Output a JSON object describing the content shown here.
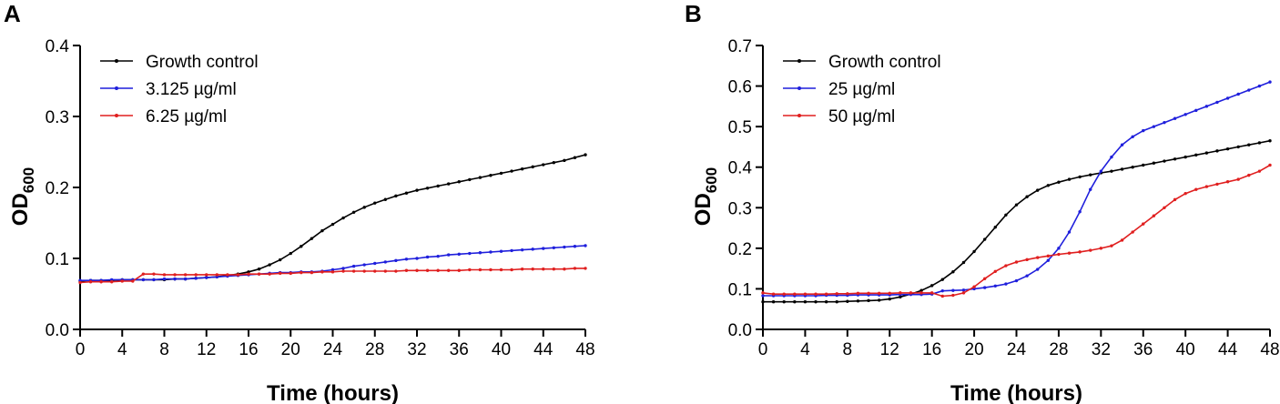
{
  "chart_data": [
    {
      "type": "line",
      "panel_label": "A",
      "xlabel": "Time (hours)",
      "ylabel_main": "OD",
      "ylabel_sub": "600",
      "xlim": [
        0,
        48
      ],
      "ylim": [
        0,
        0.4
      ],
      "x_ticks": [
        "0",
        "4",
        "8",
        "12",
        "16",
        "20",
        "24",
        "28",
        "32",
        "36",
        "40",
        "44",
        "48"
      ],
      "y_ticks": [
        "0.0",
        "0.1",
        "0.2",
        "0.3",
        "0.4"
      ],
      "legend_position": "top-left",
      "series": [
        {
          "name": "Growth control",
          "color": "#000000",
          "x": [
            0,
            1,
            2,
            3,
            4,
            5,
            6,
            7,
            8,
            9,
            10,
            11,
            12,
            13,
            14,
            15,
            16,
            17,
            18,
            19,
            20,
            21,
            22,
            23,
            24,
            25,
            26,
            27,
            28,
            29,
            30,
            31,
            32,
            33,
            34,
            35,
            36,
            37,
            38,
            39,
            40,
            41,
            42,
            43,
            44,
            45,
            46,
            47,
            48
          ],
          "y": [
            0.068,
            0.069,
            0.069,
            0.069,
            0.07,
            0.07,
            0.07,
            0.07,
            0.07,
            0.071,
            0.071,
            0.072,
            0.073,
            0.074,
            0.076,
            0.078,
            0.081,
            0.085,
            0.091,
            0.098,
            0.107,
            0.117,
            0.128,
            0.139,
            0.148,
            0.157,
            0.165,
            0.172,
            0.178,
            0.183,
            0.188,
            0.192,
            0.196,
            0.199,
            0.202,
            0.205,
            0.208,
            0.211,
            0.214,
            0.217,
            0.22,
            0.223,
            0.226,
            0.229,
            0.232,
            0.235,
            0.238,
            0.242,
            0.246
          ]
        },
        {
          "name": "3.125 µg/ml",
          "color": "#1f1fdc",
          "x": [
            0,
            1,
            2,
            3,
            4,
            5,
            6,
            7,
            8,
            9,
            10,
            11,
            12,
            13,
            14,
            15,
            16,
            17,
            18,
            19,
            20,
            21,
            22,
            23,
            24,
            25,
            26,
            27,
            28,
            29,
            30,
            31,
            32,
            33,
            34,
            35,
            36,
            37,
            38,
            39,
            40,
            41,
            42,
            43,
            44,
            45,
            46,
            47,
            48
          ],
          "y": [
            0.069,
            0.069,
            0.069,
            0.07,
            0.07,
            0.07,
            0.07,
            0.07,
            0.071,
            0.071,
            0.071,
            0.072,
            0.073,
            0.074,
            0.075,
            0.076,
            0.077,
            0.078,
            0.079,
            0.08,
            0.08,
            0.081,
            0.081,
            0.082,
            0.084,
            0.086,
            0.089,
            0.091,
            0.093,
            0.095,
            0.097,
            0.099,
            0.1,
            0.102,
            0.103,
            0.105,
            0.106,
            0.107,
            0.108,
            0.109,
            0.11,
            0.111,
            0.112,
            0.113,
            0.114,
            0.115,
            0.116,
            0.117,
            0.118
          ]
        },
        {
          "name": "6.25 µg/ml",
          "color": "#e01f1f",
          "x": [
            0,
            1,
            2,
            3,
            4,
            5,
            6,
            7,
            8,
            9,
            10,
            11,
            12,
            13,
            14,
            15,
            16,
            17,
            18,
            19,
            20,
            21,
            22,
            23,
            24,
            25,
            26,
            27,
            28,
            29,
            30,
            31,
            32,
            33,
            34,
            35,
            36,
            37,
            38,
            39,
            40,
            41,
            42,
            43,
            44,
            45,
            46,
            47,
            48
          ],
          "y": [
            0.066,
            0.067,
            0.067,
            0.067,
            0.068,
            0.068,
            0.078,
            0.078,
            0.077,
            0.077,
            0.077,
            0.077,
            0.077,
            0.077,
            0.077,
            0.077,
            0.078,
            0.078,
            0.078,
            0.079,
            0.079,
            0.08,
            0.08,
            0.081,
            0.081,
            0.082,
            0.082,
            0.082,
            0.082,
            0.082,
            0.082,
            0.083,
            0.083,
            0.083,
            0.083,
            0.083,
            0.083,
            0.084,
            0.084,
            0.084,
            0.084,
            0.084,
            0.085,
            0.085,
            0.085,
            0.085,
            0.085,
            0.086,
            0.086
          ]
        }
      ]
    },
    {
      "type": "line",
      "panel_label": "B",
      "xlabel": "Time (hours)",
      "ylabel_main": "OD",
      "ylabel_sub": "600",
      "xlim": [
        0,
        48
      ],
      "ylim": [
        0,
        0.7
      ],
      "x_ticks": [
        "0",
        "4",
        "8",
        "12",
        "16",
        "20",
        "24",
        "28",
        "32",
        "36",
        "40",
        "44",
        "48"
      ],
      "y_ticks": [
        "0.0",
        "0.1",
        "0.2",
        "0.3",
        "0.4",
        "0.5",
        "0.6",
        "0.7"
      ],
      "legend_position": "top-left",
      "series": [
        {
          "name": "Growth control",
          "color": "#000000",
          "x": [
            0,
            1,
            2,
            3,
            4,
            5,
            6,
            7,
            8,
            9,
            10,
            11,
            12,
            13,
            14,
            15,
            16,
            17,
            18,
            19,
            20,
            21,
            22,
            23,
            24,
            25,
            26,
            27,
            28,
            29,
            30,
            31,
            32,
            33,
            34,
            35,
            36,
            37,
            38,
            39,
            40,
            41,
            42,
            43,
            44,
            45,
            46,
            47,
            48
          ],
          "y": [
            0.068,
            0.068,
            0.068,
            0.068,
            0.068,
            0.068,
            0.068,
            0.068,
            0.069,
            0.07,
            0.071,
            0.072,
            0.075,
            0.08,
            0.087,
            0.096,
            0.108,
            0.123,
            0.142,
            0.165,
            0.192,
            0.222,
            0.252,
            0.282,
            0.307,
            0.327,
            0.343,
            0.355,
            0.363,
            0.37,
            0.376,
            0.381,
            0.386,
            0.39,
            0.395,
            0.4,
            0.405,
            0.41,
            0.415,
            0.42,
            0.425,
            0.43,
            0.435,
            0.44,
            0.445,
            0.45,
            0.455,
            0.46,
            0.465
          ]
        },
        {
          "name": "25 µg/ml",
          "color": "#1f1fdc",
          "x": [
            0,
            1,
            2,
            3,
            4,
            5,
            6,
            7,
            8,
            9,
            10,
            11,
            12,
            13,
            14,
            15,
            16,
            17,
            18,
            19,
            20,
            21,
            22,
            23,
            24,
            25,
            26,
            27,
            28,
            29,
            30,
            31,
            32,
            33,
            34,
            35,
            36,
            37,
            38,
            39,
            40,
            41,
            42,
            43,
            44,
            45,
            46,
            47,
            48
          ],
          "y": [
            0.083,
            0.083,
            0.083,
            0.083,
            0.083,
            0.083,
            0.084,
            0.084,
            0.084,
            0.085,
            0.085,
            0.085,
            0.085,
            0.086,
            0.086,
            0.086,
            0.087,
            0.095,
            0.096,
            0.097,
            0.1,
            0.103,
            0.107,
            0.112,
            0.12,
            0.132,
            0.148,
            0.17,
            0.2,
            0.24,
            0.29,
            0.345,
            0.39,
            0.425,
            0.455,
            0.475,
            0.49,
            0.5,
            0.51,
            0.52,
            0.53,
            0.54,
            0.55,
            0.56,
            0.57,
            0.58,
            0.59,
            0.6,
            0.61
          ]
        },
        {
          "name": "50 µg/ml",
          "color": "#e01f1f",
          "x": [
            0,
            1,
            2,
            3,
            4,
            5,
            6,
            7,
            8,
            9,
            10,
            11,
            12,
            13,
            14,
            15,
            16,
            17,
            18,
            19,
            20,
            21,
            22,
            23,
            24,
            25,
            26,
            27,
            28,
            29,
            30,
            31,
            32,
            33,
            34,
            35,
            36,
            37,
            38,
            39,
            40,
            41,
            42,
            43,
            44,
            45,
            46,
            47,
            48
          ],
          "y": [
            0.09,
            0.087,
            0.087,
            0.087,
            0.087,
            0.087,
            0.087,
            0.088,
            0.088,
            0.089,
            0.089,
            0.089,
            0.089,
            0.09,
            0.09,
            0.09,
            0.09,
            0.082,
            0.084,
            0.09,
            0.105,
            0.125,
            0.143,
            0.157,
            0.166,
            0.172,
            0.177,
            0.181,
            0.185,
            0.188,
            0.191,
            0.195,
            0.2,
            0.206,
            0.22,
            0.24,
            0.26,
            0.28,
            0.3,
            0.32,
            0.335,
            0.345,
            0.352,
            0.358,
            0.364,
            0.37,
            0.38,
            0.39,
            0.405
          ]
        }
      ]
    }
  ]
}
